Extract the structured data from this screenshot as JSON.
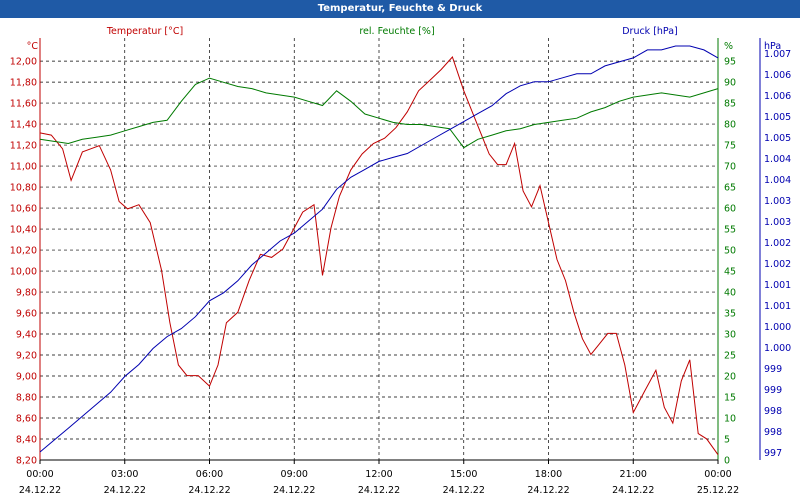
{
  "window": {
    "title": "Temperatur, Feuchte & Druck"
  },
  "chart_data": {
    "type": "line",
    "title": "Temperatur, Feuchte & Druck",
    "grid": true,
    "x": {
      "label": "",
      "range_hours": [
        0,
        24
      ],
      "ticks": [
        {
          "hour": 0,
          "time": "00:00",
          "date": "24.12.22"
        },
        {
          "hour": 3,
          "time": "03:00",
          "date": "24.12.22"
        },
        {
          "hour": 6,
          "time": "06:00",
          "date": "24.12.22"
        },
        {
          "hour": 9,
          "time": "09:00",
          "date": "24.12.22"
        },
        {
          "hour": 12,
          "time": "12:00",
          "date": "24.12.22"
        },
        {
          "hour": 15,
          "time": "15:00",
          "date": "24.12.22"
        },
        {
          "hour": 18,
          "time": "18:00",
          "date": "24.12.22"
        },
        {
          "hour": 21,
          "time": "21:00",
          "date": "24.12.22"
        },
        {
          "hour": 24,
          "time": "00:00",
          "date": "25.12.22"
        }
      ]
    },
    "axes": {
      "temperature": {
        "name": "Temperatur [°C]",
        "unit": "°C",
        "color": "#c00000",
        "range": [
          8.2,
          12.2
        ],
        "ticks": [
          "8,20",
          "8,40",
          "8,60",
          "8,80",
          "9,00",
          "9,20",
          "9,40",
          "9,60",
          "9,80",
          "10,00",
          "10,20",
          "10,40",
          "10,60",
          "10,80",
          "11,00",
          "11,20",
          "11,40",
          "11,60",
          "11,80",
          "12,00"
        ]
      },
      "humidity": {
        "name": "rel. Feuchte [%]",
        "unit": "%",
        "color": "#007a00",
        "range": [
          0,
          100
        ],
        "ticks": [
          "0",
          "5",
          "10",
          "15",
          "20",
          "25",
          "30",
          "35",
          "40",
          "45",
          "50",
          "55",
          "60",
          "65",
          "70",
          "75",
          "80",
          "85",
          "90",
          "95"
        ],
        "top_label": "%"
      },
      "pressure": {
        "name": "Druck [hPa]",
        "unit": "hPa",
        "color": "#0000b0",
        "range": [
          996.7,
          1007.3
        ],
        "ticks": [
          "997",
          "998",
          "998",
          "999",
          "999",
          "1.000",
          "1.000",
          "1.001",
          "1.001",
          "1.002",
          "1.002",
          "1.003",
          "1.003",
          "1.004",
          "1.004",
          "1.005",
          "1.005",
          "1.006",
          "1.006",
          "1.007"
        ]
      }
    },
    "series": [
      {
        "name": "Temperatur [°C]",
        "axis": "temperature",
        "color": "#c00000",
        "x": [
          0,
          0.4,
          0.8,
          1.1,
          1.5,
          1.8,
          2.1,
          2.5,
          2.8,
          3.1,
          3.5,
          3.9,
          4.3,
          4.6,
          4.9,
          5.2,
          5.6,
          6.0,
          6.3,
          6.6,
          7.0,
          7.4,
          7.8,
          8.2,
          8.6,
          9.0,
          9.3,
          9.7,
          10.0,
          10.3,
          10.6,
          11.0,
          11.4,
          11.8,
          12.2,
          12.6,
          13.0,
          13.4,
          13.8,
          14.2,
          14.6,
          15.0,
          15.3,
          15.6,
          15.9,
          16.2,
          16.5,
          16.8,
          17.1,
          17.4,
          17.7,
          18.0,
          18.3,
          18.6,
          18.9,
          19.2,
          19.5,
          19.8,
          20.1,
          20.4,
          20.7,
          21.0,
          21.4,
          21.8,
          22.1,
          22.4,
          22.7,
          23.0,
          23.3,
          23.6,
          24.0
        ],
        "values": [
          11.3,
          11.28,
          11.15,
          10.85,
          11.12,
          11.15,
          11.18,
          10.95,
          10.65,
          10.58,
          10.62,
          10.45,
          10.0,
          9.5,
          9.1,
          9.0,
          9.0,
          8.9,
          9.1,
          9.5,
          9.6,
          9.9,
          10.15,
          10.12,
          10.2,
          10.4,
          10.55,
          10.62,
          9.95,
          10.4,
          10.7,
          10.95,
          11.1,
          11.2,
          11.25,
          11.35,
          11.5,
          11.7,
          11.8,
          11.9,
          12.02,
          11.7,
          11.5,
          11.3,
          11.1,
          11.0,
          11.0,
          11.2,
          10.75,
          10.6,
          10.8,
          10.45,
          10.1,
          9.9,
          9.6,
          9.35,
          9.2,
          9.3,
          9.4,
          9.4,
          9.1,
          8.65,
          8.85,
          9.05,
          8.7,
          8.55,
          8.95,
          9.15,
          8.45,
          8.4,
          8.25
        ]
      },
      {
        "name": "rel. Feuchte [%]",
        "axis": "humidity",
        "color": "#007a00",
        "x": [
          0,
          0.5,
          1.0,
          1.5,
          2.0,
          2.5,
          3.0,
          3.5,
          4.0,
          4.5,
          5.0,
          5.5,
          6.0,
          6.5,
          7.0,
          7.5,
          8.0,
          8.5,
          9.0,
          9.5,
          10.0,
          10.5,
          11.0,
          11.5,
          12.0,
          12.5,
          13.0,
          13.5,
          14.0,
          14.5,
          15.0,
          15.5,
          16.0,
          16.5,
          17.0,
          17.5,
          18.0,
          18.5,
          19.0,
          19.5,
          20.0,
          20.5,
          21.0,
          21.5,
          22.0,
          22.5,
          23.0,
          23.5,
          24.0
        ],
        "values": [
          76,
          75.5,
          75,
          76,
          76.5,
          77,
          78,
          79,
          80,
          80.5,
          85,
          89,
          90.5,
          89.5,
          88.5,
          88,
          87,
          86.5,
          86,
          85,
          84,
          87.5,
          85,
          82,
          81,
          80,
          79.5,
          79.5,
          79,
          78.5,
          74,
          76,
          77,
          78,
          78.5,
          79.5,
          80,
          80.5,
          81,
          82.5,
          83.5,
          85,
          86,
          86.5,
          87,
          86.5,
          86,
          87,
          88
        ]
      },
      {
        "name": "Druck [hPa]",
        "axis": "pressure",
        "color": "#0000b0",
        "x": [
          0,
          0.5,
          1.0,
          1.5,
          2.0,
          2.5,
          3.0,
          3.5,
          4.0,
          4.5,
          5.0,
          5.5,
          6.0,
          6.5,
          7.0,
          7.5,
          8.0,
          8.5,
          9.0,
          9.5,
          10.0,
          10.5,
          11.0,
          11.5,
          12.0,
          12.5,
          13.0,
          13.5,
          14.0,
          14.5,
          15.0,
          15.5,
          16.0,
          16.5,
          17.0,
          17.5,
          18.0,
          18.5,
          19.0,
          19.5,
          20.0,
          20.5,
          21.0,
          21.5,
          22.0,
          22.5,
          23.0,
          23.5,
          24.0
        ],
        "values": [
          996.9,
          997.2,
          997.5,
          997.8,
          998.1,
          998.4,
          998.8,
          999.1,
          999.5,
          999.8,
          1000.0,
          1000.3,
          1000.7,
          1000.9,
          1001.2,
          1001.6,
          1001.9,
          1002.2,
          1002.4,
          1002.7,
          1003.0,
          1003.5,
          1003.8,
          1004.0,
          1004.2,
          1004.3,
          1004.4,
          1004.6,
          1004.8,
          1005.0,
          1005.2,
          1005.4,
          1005.6,
          1005.9,
          1006.1,
          1006.2,
          1006.2,
          1006.3,
          1006.4,
          1006.4,
          1006.6,
          1006.7,
          1006.8,
          1007.0,
          1007.0,
          1007.1,
          1007.1,
          1007.0,
          1006.8
        ]
      }
    ]
  }
}
